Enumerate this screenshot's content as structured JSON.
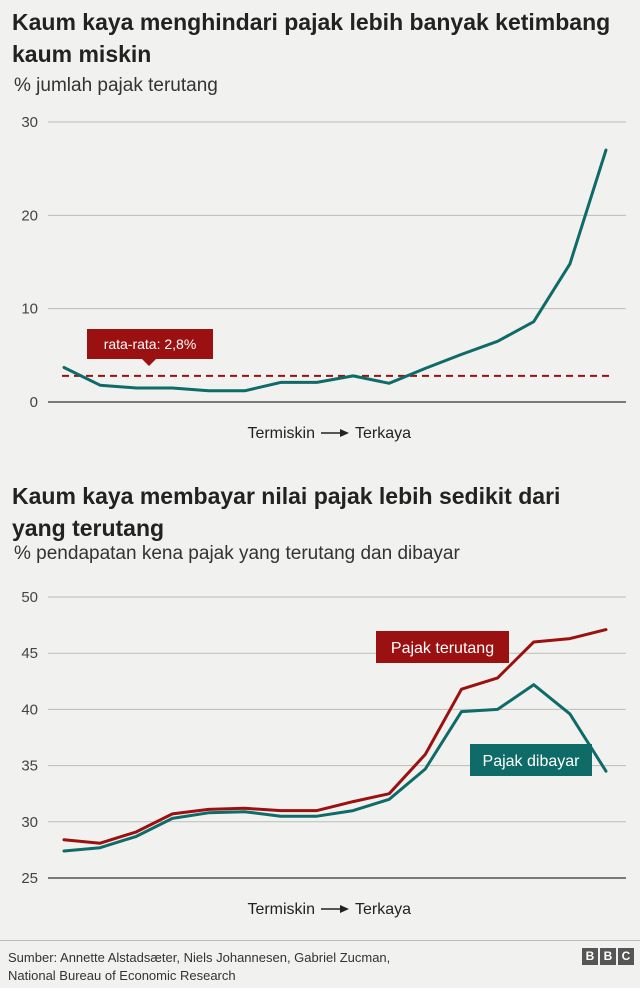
{
  "chart_data": [
    {
      "type": "line",
      "title": "Kaum kaya menghindari pajak lebih banyak ketimbang kaum miskin",
      "subtitle": "% jumlah pajak terutang",
      "xlabel": "Termiskin → Terkaya",
      "xlabel_left": "Termiskin",
      "xlabel_right": "Terkaya",
      "ylabel": "",
      "ylim": [
        0,
        30
      ],
      "yticks": [
        "0",
        "10",
        "20",
        "30"
      ],
      "grid": true,
      "x": [
        1,
        2,
        3,
        4,
        5,
        6,
        7,
        8,
        9,
        10,
        11,
        12,
        13,
        14,
        15,
        16
      ],
      "series": [
        {
          "values": [
            3.7,
            1.8,
            1.5,
            1.5,
            1.2,
            1.2,
            2.1,
            2.1,
            2.8,
            2.0,
            3.6,
            5.1,
            6.5,
            8.6,
            14.8,
            27.0
          ],
          "color": "#0f6b67"
        }
      ],
      "reference_line": {
        "value": 2.8,
        "label": "rata-rata: 2,8%",
        "color": "#9b1111",
        "style": "dashed"
      }
    },
    {
      "type": "line",
      "title": "Kaum kaya membayar nilai pajak lebih sedikit dari yang terutang",
      "subtitle": "% pendapatan kena pajak yang terutang dan dibayar",
      "xlabel": "Termiskin → Terkaya",
      "xlabel_left": "Termiskin",
      "xlabel_right": "Terkaya",
      "ylabel": "",
      "ylim": [
        25,
        50
      ],
      "yticks": [
        "25",
        "30",
        "35",
        "40",
        "45",
        "50"
      ],
      "grid": true,
      "x": [
        1,
        2,
        3,
        4,
        5,
        6,
        7,
        8,
        9,
        10,
        11,
        12,
        13,
        14,
        15,
        16
      ],
      "series": [
        {
          "name": "Pajak terutang",
          "values": [
            28.4,
            28.1,
            29.1,
            30.7,
            31.1,
            31.2,
            31.0,
            31.0,
            31.8,
            32.5,
            36.0,
            41.8,
            42.8,
            46.0,
            46.3,
            47.1
          ],
          "color": "#9b1111"
        },
        {
          "name": "Pajak dibayar",
          "values": [
            27.4,
            27.7,
            28.7,
            30.3,
            30.8,
            30.9,
            30.5,
            30.5,
            31.0,
            32.0,
            34.7,
            39.8,
            40.0,
            42.2,
            39.6,
            34.5
          ],
          "color": "#0f6b67"
        }
      ]
    }
  ],
  "footer": {
    "source_line1": "Sumber: Annette Alstadsæter, Niels Johannesen, Gabriel Zucman,",
    "source_line2": "National Bureau of Economic Research",
    "logo_letters": [
      "B",
      "B",
      "C"
    ]
  }
}
